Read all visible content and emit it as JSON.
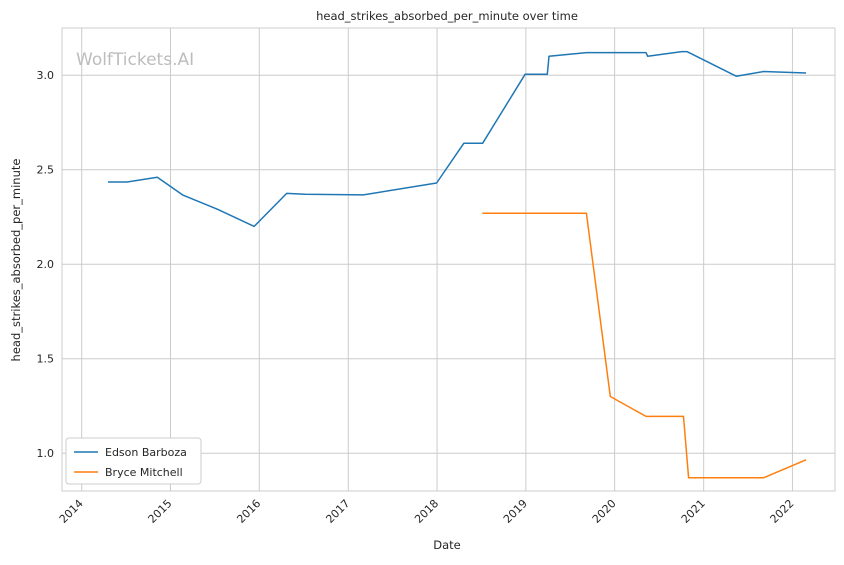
{
  "chart_data": {
    "type": "line",
    "title": "head_strikes_absorbed_per_minute over time",
    "xlabel": "Date",
    "ylabel": "head_strikes_absorbed_per_minute",
    "watermark": "WolfTickets.AI",
    "grid": true,
    "legend_position": "lower-left",
    "x_ticks": [
      "2014",
      "2015",
      "2016",
      "2017",
      "2018",
      "2019",
      "2020",
      "2021",
      "2022"
    ],
    "y_ticks": [
      "1.0",
      "1.5",
      "2.0",
      "2.5",
      "3.0"
    ],
    "ylim": [
      0.8,
      3.25
    ],
    "xlim": [
      "2013-10-12",
      "2022-06-25"
    ],
    "series": [
      {
        "name": "Edson Barboza",
        "color": "#1f77b4",
        "points": [
          {
            "x": "2014-04-19",
            "y": 2.435
          },
          {
            "x": "2014-07-05",
            "y": 2.435
          },
          {
            "x": "2014-11-08",
            "y": 2.46
          },
          {
            "x": "2015-02-22",
            "y": 2.365
          },
          {
            "x": "2015-07-15",
            "y": 2.29
          },
          {
            "x": "2015-12-11",
            "y": 2.2
          },
          {
            "x": "2016-04-23",
            "y": 2.375
          },
          {
            "x": "2016-07-07",
            "y": 2.37
          },
          {
            "x": "2017-03-04",
            "y": 2.367
          },
          {
            "x": "2017-12-30",
            "y": 2.43
          },
          {
            "x": "2018-04-21",
            "y": 2.64
          },
          {
            "x": "2018-07-07",
            "y": 2.64
          },
          {
            "x": "2018-12-29",
            "y": 3.005
          },
          {
            "x": "2019-03-30",
            "y": 3.005
          },
          {
            "x": "2019-04-06",
            "y": 3.1
          },
          {
            "x": "2019-09-07",
            "y": 3.12
          },
          {
            "x": "2020-05-09",
            "y": 3.12
          },
          {
            "x": "2020-05-16",
            "y": 3.1
          },
          {
            "x": "2020-10-03",
            "y": 3.125
          },
          {
            "x": "2020-10-24",
            "y": 3.125
          },
          {
            "x": "2021-05-15",
            "y": 2.995
          },
          {
            "x": "2021-09-04",
            "y": 3.02
          },
          {
            "x": "2022-02-26",
            "y": 3.012
          }
        ]
      },
      {
        "name": "Bryce Mitchell",
        "color": "#ff7f0e",
        "points": [
          {
            "x": "2018-07-06",
            "y": 2.27
          },
          {
            "x": "2019-09-07",
            "y": 2.27
          },
          {
            "x": "2019-12-14",
            "y": 1.3
          },
          {
            "x": "2020-05-09",
            "y": 1.195
          },
          {
            "x": "2020-10-10",
            "y": 1.195
          },
          {
            "x": "2020-10-31",
            "y": 0.87
          },
          {
            "x": "2021-09-04",
            "y": 0.87
          },
          {
            "x": "2022-02-26",
            "y": 0.965
          }
        ]
      }
    ]
  }
}
